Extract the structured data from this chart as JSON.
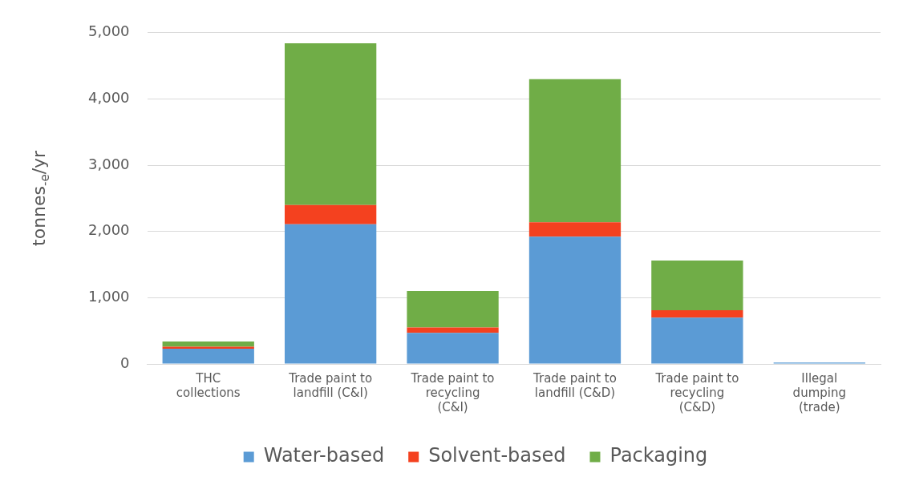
{
  "chart_data": {
    "type": "bar",
    "stacked": true,
    "ylabel": "tonnes$_{-e}$/yr",
    "categories": [
      "THC collections",
      "Trade paint to landfill (C&I)",
      "Trade paint to recycling (C&I)",
      "Trade paint to landfill (C&D)",
      "Trade paint to recycling (C&D)",
      "Illegal dumping (trade)"
    ],
    "series": [
      {
        "name": "Water-based",
        "color": "#5b9bd5",
        "values": [
          230,
          2110,
          470,
          1920,
          700,
          20
        ]
      },
      {
        "name": "Solvent-based",
        "color": "#f4411f",
        "values": [
          30,
          290,
          80,
          220,
          110,
          0
        ]
      },
      {
        "name": "Packaging",
        "color": "#70ad47",
        "values": [
          80,
          2440,
          550,
          2160,
          750,
          0
        ]
      }
    ],
    "ylim": [
      0,
      5000
    ],
    "yticks": [
      0,
      {
        "value": 1000,
        "label": "1,000"
      },
      {
        "value": 2000,
        "label": "2,000"
      },
      {
        "value": 3000,
        "label": "3,000"
      },
      {
        "value": 4000,
        "label": "4,000"
      },
      {
        "value": 5000,
        "label": "5,000"
      }
    ],
    "grid": "y",
    "legend": "bottom"
  }
}
